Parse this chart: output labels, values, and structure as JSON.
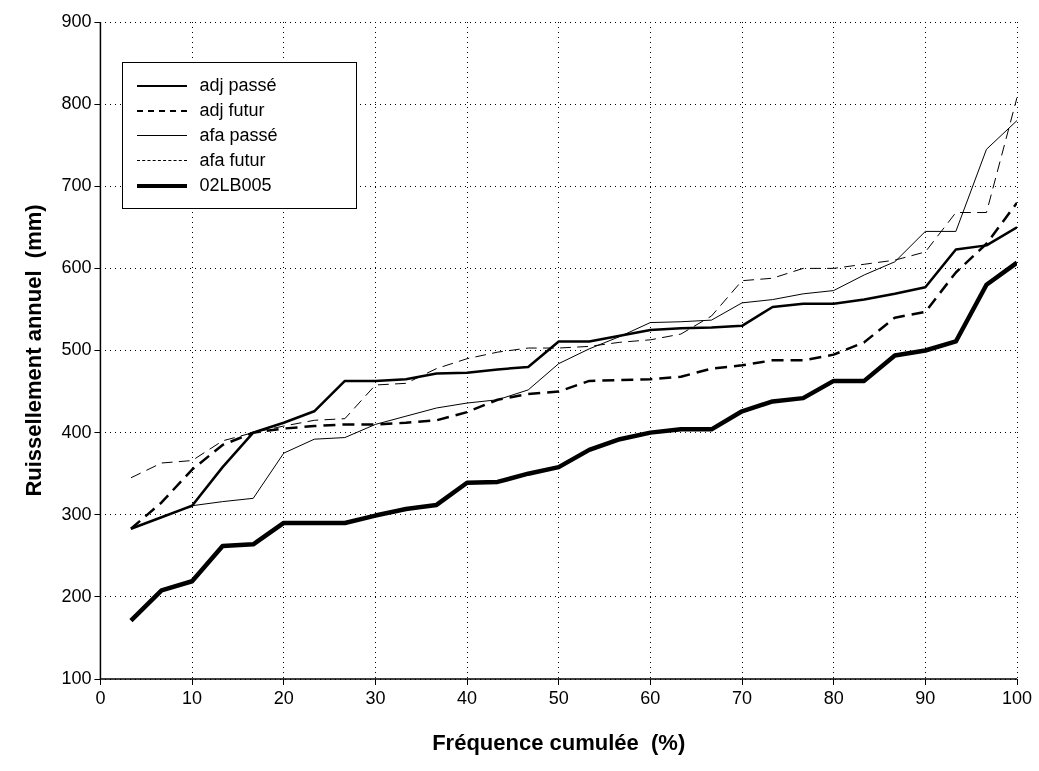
{
  "chart_data": {
    "type": "line",
    "xlabel": "Fréquence cumulée  (%)",
    "ylabel": "Ruissellement annuel  (mm)",
    "x": [
      3.33,
      6.67,
      10,
      13.33,
      16.67,
      20,
      23.33,
      26.67,
      30,
      33.33,
      36.67,
      40,
      43.33,
      46.67,
      50,
      53.33,
      56.67,
      60,
      63.33,
      66.67,
      70,
      73.33,
      76.67,
      80,
      83.33,
      86.67,
      90,
      93.33,
      96.67,
      100
    ],
    "series": [
      {
        "name": "adj passé",
        "color": "#000000",
        "line_style": "solid",
        "values": [
          283,
          297,
          311,
          358,
          400,
          412,
          426,
          463,
          463,
          465,
          472,
          473,
          477,
          480,
          511,
          511,
          518,
          525,
          527,
          528,
          530,
          553,
          557,
          557,
          562,
          569,
          577,
          623,
          628,
          650
        ]
      },
      {
        "name": "adj futur",
        "color": "#000000",
        "line_style": "dashed",
        "values": [
          283,
          315,
          355,
          385,
          400,
          405,
          408,
          410,
          410,
          412,
          415,
          425,
          440,
          447,
          450,
          463,
          464,
          465,
          468,
          478,
          482,
          488,
          488,
          495,
          510,
          540,
          547,
          595,
          630,
          680
        ]
      },
      {
        "name": "afa passé",
        "color": "#000000",
        "line_style": "solid",
        "values": [
          283,
          297,
          311,
          316,
          320,
          375,
          392,
          394,
          410,
          420,
          430,
          436,
          440,
          452,
          484,
          502,
          517,
          534,
          535,
          537,
          558,
          562,
          569,
          573,
          592,
          608,
          645,
          645,
          745,
          780
        ]
      },
      {
        "name": "afa futur",
        "color": "#000000",
        "line_style": "dashed",
        "values": [
          345,
          363,
          366,
          390,
          400,
          408,
          415,
          417,
          458,
          460,
          478,
          490,
          498,
          503,
          503,
          505,
          510,
          513,
          520,
          542,
          585,
          588,
          600,
          600,
          605,
          610,
          620,
          668,
          668,
          808
        ]
      },
      {
        "name": "02LB005",
        "color": "#000000",
        "line_style": "solid",
        "values": [
          171,
          208,
          219,
          262,
          264,
          290,
          290,
          290,
          299,
          307,
          312,
          339,
          340,
          350,
          358,
          379,
          392,
          400,
          404,
          404,
          426,
          438,
          442,
          463,
          463,
          494,
          500,
          511,
          580,
          607
        ]
      }
    ],
    "xlim": [
      0,
      100
    ],
    "xticks": [
      0,
      10,
      20,
      30,
      40,
      50,
      60,
      70,
      80,
      90,
      100
    ],
    "ylim": [
      100,
      900
    ],
    "yticks": [
      100,
      200,
      300,
      400,
      500,
      600,
      700,
      800,
      900
    ],
    "grid": true,
    "legend": "top left",
    "marker": "none"
  }
}
